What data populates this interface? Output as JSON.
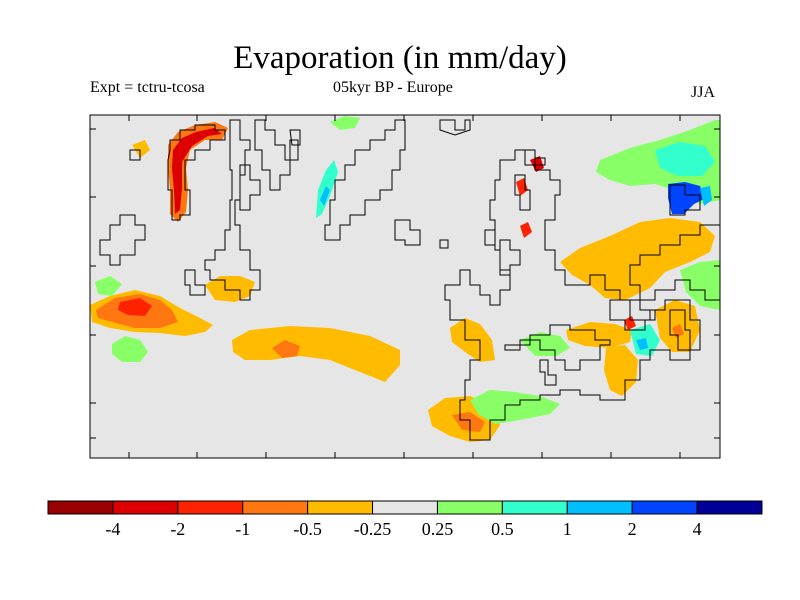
{
  "title": "Evaporation (in mm/day)",
  "subtitle_left": "Expt = tctru-tcosa",
  "subtitle_center": "05kyr BP - Europe",
  "subtitle_right": "JJA",
  "colors": {
    "background_map": "#e6e6e6",
    "coast": "#000000",
    "land_orange": "#ffbf00",
    "land_green": "#88ff66",
    "dark_red": "#990000",
    "red": "#e00000",
    "orange_red": "#ff4400",
    "orange": "#ff7f00",
    "teal": "#33ffcc",
    "sky": "#00bfff",
    "blue": "#0044ff",
    "navy": "#000099"
  },
  "colorbar": {
    "colors": [
      "#990000",
      "#dd0000",
      "#ff2200",
      "#ff7711",
      "#ffbb00",
      "#e6e6e6",
      "#88ff66",
      "#33ffcc",
      "#00bfff",
      "#0044ff",
      "#000099"
    ],
    "labels": [
      "-4",
      "-2",
      "-1",
      "-0.5",
      "-0.25",
      "0.25",
      "0.5",
      "1",
      "2",
      "4"
    ]
  }
}
